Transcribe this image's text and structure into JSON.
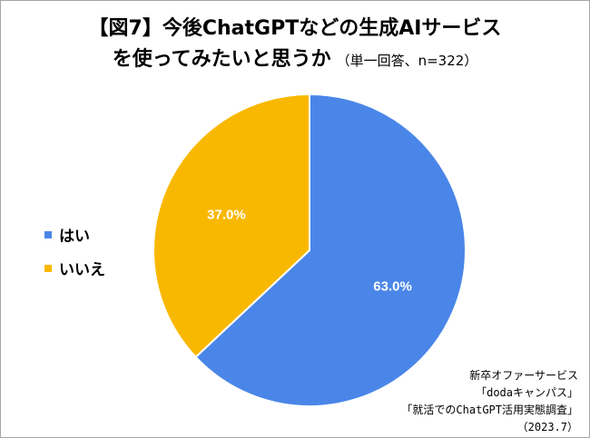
{
  "title": {
    "line1": "【図7】今後ChatGPTなどの生成AIサービス",
    "line2": "を使ってみたいと思うか",
    "subtitle": "（単一回答、n=322）"
  },
  "legend": [
    {
      "label": "はい",
      "color": "#4a86e8"
    },
    {
      "label": "いいえ",
      "color": "#f9b800"
    }
  ],
  "source": [
    "新卒オファーサービス",
    "「dodaキャンパス」",
    "「就活でのChatGPT活用実態調査」",
    "（2023.7）"
  ],
  "chart_data": {
    "type": "pie",
    "categories": [
      "はい",
      "いいえ"
    ],
    "values": [
      63.0,
      37.0
    ],
    "data_labels": [
      "63.0%",
      "37.0%"
    ],
    "colors": [
      "#4a86e8",
      "#f9b800"
    ],
    "start": "12 o'clock, clockwise",
    "legend_position": "left"
  }
}
